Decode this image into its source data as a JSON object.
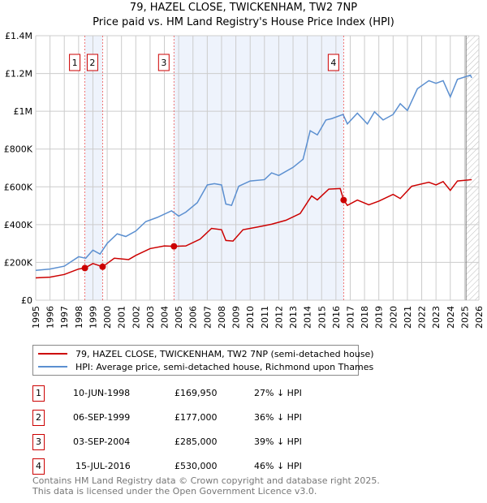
{
  "title": "79, HAZEL CLOSE, TWICKENHAM, TW2 7NP",
  "subtitle": "Price paid vs. HM Land Registry's House Price Index (HPI)",
  "chart_data": {
    "type": "line",
    "title": "79, HAZEL CLOSE, TWICKENHAM, TW2 7NP — Price paid vs. HM Land Registry's House Price Index (HPI)",
    "xlim": [
      1995,
      2026
    ],
    "ylim": [
      0,
      1400000
    ],
    "x_ticks": [
      "1995",
      "1996",
      "1997",
      "1998",
      "1999",
      "2000",
      "2001",
      "2002",
      "2003",
      "2004",
      "2005",
      "2006",
      "2007",
      "2008",
      "2009",
      "2010",
      "2011",
      "2012",
      "2013",
      "2014",
      "2015",
      "2016",
      "2017",
      "2018",
      "2019",
      "2020",
      "2021",
      "2022",
      "2023",
      "2024",
      "2025",
      "2026"
    ],
    "y_ticks": [
      {
        "v": 0,
        "label": "£0"
      },
      {
        "v": 200000,
        "label": "£200K"
      },
      {
        "v": 400000,
        "label": "£400K"
      },
      {
        "v": 600000,
        "label": "£600K"
      },
      {
        "v": 800000,
        "label": "£800K"
      },
      {
        "v": 1000000,
        "label": "£1M"
      },
      {
        "v": 1200000,
        "label": "£1.2M"
      },
      {
        "v": 1400000,
        "label": "£1.4M"
      }
    ],
    "grid": true,
    "series": [
      {
        "name": "79, HAZEL CLOSE, TWICKENHAM, TW2 7NP (semi-detached house)",
        "color": "#cc0000",
        "x": [
          1995,
          1996,
          1997,
          1998,
          1998.44,
          1999,
          1999.68,
          2000.5,
          2001.5,
          2002,
          2003,
          2004,
          2004.67,
          2005.5,
          2006.5,
          2007.3,
          2008,
          2008.3,
          2008.8,
          2009.5,
          2010.5,
          2011.5,
          2012.5,
          2013.5,
          2014.3,
          2014.7,
          2015.5,
          2016.3,
          2016.54,
          2016.8,
          2017.5,
          2018.3,
          2019,
          2020,
          2020.5,
          2021.3,
          2022.5,
          2023,
          2023.5,
          2024,
          2024.5,
          2025.5
        ],
        "y": [
          118000,
          122000,
          136000,
          165000,
          169950,
          194000,
          177000,
          222000,
          215000,
          237000,
          273000,
          287000,
          285000,
          287000,
          323000,
          380000,
          373000,
          316000,
          313000,
          373000,
          387000,
          402000,
          423000,
          459000,
          552000,
          531000,
          588000,
          591000,
          530000,
          502000,
          530000,
          505000,
          524000,
          560000,
          538000,
          603000,
          624000,
          610000,
          628000,
          581000,
          631000,
          638000
        ]
      },
      {
        "name": "HPI: Average price, semi-detached house, Richmond upon Thames",
        "color": "#5b8fd0",
        "x": [
          1995,
          1996,
          1997,
          1998,
          1998.5,
          1999,
          1999.5,
          2000,
          2000.7,
          2001.3,
          2002,
          2002.7,
          2003.5,
          2004.5,
          2005,
          2005.5,
          2006.3,
          2007,
          2007.5,
          2008,
          2008.3,
          2008.7,
          2009.2,
          2010,
          2011,
          2011.5,
          2012,
          2013,
          2013.7,
          2014.2,
          2014.7,
          2015.3,
          2015.7,
          2016.5,
          2016.8,
          2017.5,
          2018.2,
          2018.7,
          2019.3,
          2020,
          2020.5,
          2021,
          2021.7,
          2022.5,
          2023,
          2023.5,
          2024,
          2024.5,
          2025.4,
          2025.5
        ],
        "y": [
          158000,
          165000,
          180000,
          230000,
          222000,
          265000,
          244000,
          301000,
          351000,
          337000,
          366000,
          416000,
          438000,
          473000,
          445000,
          466000,
          516000,
          610000,
          617000,
          610000,
          509000,
          502000,
          603000,
          631000,
          638000,
          674000,
          660000,
          703000,
          746000,
          897000,
          875000,
          954000,
          961000,
          983000,
          933000,
          990000,
          933000,
          997000,
          954000,
          983000,
          1040000,
          1004000,
          1119000,
          1162000,
          1148000,
          1162000,
          1076000,
          1169000,
          1191000,
          1177000
        ]
      }
    ],
    "sales": [
      {
        "n": "1",
        "x": 1998.44,
        "y": 169950,
        "date": "10-JUN-1998",
        "price": "£169,950",
        "hpi": "27% ↓ HPI"
      },
      {
        "n": "2",
        "x": 1999.68,
        "y": 177000,
        "date": "06-SEP-1999",
        "price": "£177,000",
        "hpi": "36% ↓ HPI"
      },
      {
        "n": "3",
        "x": 2004.67,
        "y": 285000,
        "date": "03-SEP-2004",
        "price": "£285,000",
        "hpi": "39% ↓ HPI"
      },
      {
        "n": "4",
        "x": 2016.54,
        "y": 530000,
        "date": "15-JUL-2016",
        "price": "£530,000",
        "hpi": "46% ↓ HPI"
      }
    ],
    "shaded": [
      [
        1998.44,
        1999.68
      ],
      [
        2004.67,
        2016.54
      ]
    ],
    "forecast_from": 2025.1,
    "legend_placement": "bottom"
  },
  "footer": [
    "Contains HM Land Registry data © Crown copyright and database right 2025.",
    "This data is licensed under the Open Government Licence v3.0."
  ]
}
